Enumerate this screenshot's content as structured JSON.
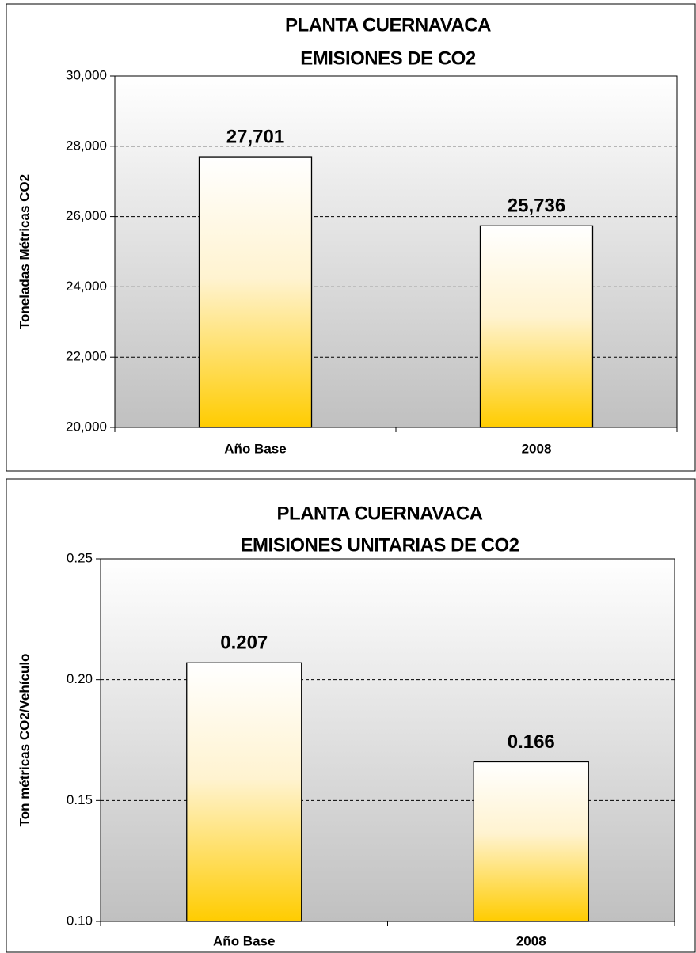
{
  "chart_data": [
    {
      "type": "bar",
      "title": "PLANTA CUERNAVACA",
      "subtitle": "EMISIONES DE CO2",
      "y_label": "Toneladas Métricas CO2",
      "categories": [
        "Año Base",
        "2008"
      ],
      "values": [
        27701,
        25736
      ],
      "value_labels": [
        "27,701",
        "25,736"
      ],
      "color": "#ffcc00",
      "grid": true,
      "ylim": [
        20000,
        30000
      ],
      "yticks": [
        {
          "value": 20000,
          "label": "20,000"
        },
        {
          "value": 22000,
          "label": "22,000"
        },
        {
          "value": 24000,
          "label": "24,000"
        },
        {
          "value": 26000,
          "label": "26,000"
        },
        {
          "value": 28000,
          "label": "28,000"
        },
        {
          "value": 30000,
          "label": "30,000"
        }
      ]
    },
    {
      "type": "bar",
      "title": "PLANTA CUERNAVACA",
      "subtitle": "EMISIONES UNITARIAS DE CO2",
      "y_label": "Ton métricas CO2/Vehículo",
      "categories": [
        "Año Base",
        "2008"
      ],
      "values": [
        0.207,
        0.166
      ],
      "color": "#ffcc00",
      "grid": true,
      "ylim": [
        0.1,
        0.25
      ],
      "yticks": [
        {
          "value": 0.1,
          "label": "0.10"
        },
        0.15,
        {
          "value": 0.2,
          "label": "0.20"
        },
        0.25
      ]
    }
  ]
}
